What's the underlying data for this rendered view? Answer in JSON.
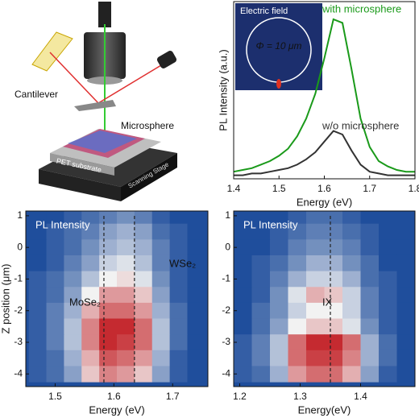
{
  "illustration": {
    "labels": [
      "Cantilever",
      "Microsphere",
      "PET substrate",
      "Scanning Stage"
    ]
  },
  "chart_data": [
    {
      "type": "line",
      "xlabel": "Energy (eV)",
      "ylabel": "PL Intensity (a.u.)",
      "xlim": [
        1.4,
        1.8
      ],
      "xticks": [
        1.4,
        1.5,
        1.6,
        1.7,
        1.8
      ],
      "ylim": [
        0,
        1
      ],
      "annotations": [
        "Electric field",
        "Φ = 10 μm"
      ],
      "x": [
        1.4,
        1.42,
        1.44,
        1.46,
        1.48,
        1.5,
        1.52,
        1.54,
        1.56,
        1.58,
        1.6,
        1.62,
        1.64,
        1.66,
        1.68,
        1.7,
        1.72,
        1.74,
        1.76,
        1.78,
        1.8
      ],
      "series": [
        {
          "name": "with microsphere",
          "color": "#1a9a1a",
          "values": [
            0.04,
            0.05,
            0.06,
            0.08,
            0.1,
            0.13,
            0.17,
            0.24,
            0.34,
            0.48,
            0.68,
            0.9,
            0.88,
            0.62,
            0.34,
            0.18,
            0.1,
            0.07,
            0.05,
            0.04,
            0.04
          ]
        },
        {
          "name": "w/o microsphere",
          "color": "#333333",
          "values": [
            0.02,
            0.02,
            0.03,
            0.03,
            0.04,
            0.05,
            0.06,
            0.08,
            0.11,
            0.15,
            0.21,
            0.27,
            0.25,
            0.16,
            0.08,
            0.04,
            0.03,
            0.02,
            0.02,
            0.02,
            0.02
          ]
        }
      ]
    },
    {
      "type": "heatmap",
      "title": "PL Intensity",
      "xlabel": "Energy (eV)",
      "ylabel": "Z position (μm)",
      "xlim": [
        1.45,
        1.76
      ],
      "xticks": [
        1.5,
        1.6,
        1.7
      ],
      "ylim": [
        -4.4,
        1.15
      ],
      "yticks": [
        1,
        0,
        -1,
        -2,
        -3,
        -4
      ],
      "colormap": [
        "#1f4e9c",
        "#f2f2f2",
        "#c0141a"
      ],
      "guides": [
        1.583,
        1.635
      ],
      "annotations": [
        "MoSe₂",
        "WSe₂"
      ],
      "x": [
        1.47,
        1.5,
        1.53,
        1.56,
        1.59,
        1.62,
        1.65,
        1.68,
        1.71,
        1.74
      ],
      "y": [
        1.0,
        0.5,
        0,
        -0.5,
        -1,
        -1.5,
        -2,
        -2.5,
        -3,
        -3.5,
        -4
      ],
      "z": [
        [
          0,
          0,
          0.05,
          0.1,
          0.15,
          0.2,
          0.15,
          0.05,
          0,
          0
        ],
        [
          0,
          0.05,
          0.1,
          0.15,
          0.25,
          0.3,
          0.25,
          0.1,
          0.05,
          0
        ],
        [
          0,
          0.05,
          0.1,
          0.2,
          0.3,
          0.35,
          0.3,
          0.15,
          0.05,
          0
        ],
        [
          0,
          0.05,
          0.15,
          0.25,
          0.4,
          0.45,
          0.35,
          0.15,
          0.05,
          0
        ],
        [
          0.05,
          0.1,
          0.2,
          0.35,
          0.5,
          0.55,
          0.45,
          0.2,
          0.05,
          0
        ],
        [
          0.05,
          0.1,
          0.25,
          0.5,
          0.7,
          0.7,
          0.6,
          0.25,
          0.05,
          0
        ],
        [
          0.05,
          0.15,
          0.3,
          0.65,
          0.8,
          0.8,
          0.7,
          0.3,
          0.1,
          0
        ],
        [
          0.05,
          0.15,
          0.35,
          0.75,
          0.95,
          0.95,
          0.8,
          0.35,
          0.1,
          0
        ],
        [
          0.05,
          0.15,
          0.35,
          0.75,
          0.95,
          0.9,
          0.8,
          0.35,
          0.1,
          0
        ],
        [
          0.05,
          0.1,
          0.3,
          0.65,
          0.85,
          0.8,
          0.7,
          0.3,
          0.05,
          0
        ],
        [
          0.05,
          0.1,
          0.25,
          0.6,
          0.75,
          0.7,
          0.6,
          0.25,
          0.05,
          0
        ]
      ]
    },
    {
      "type": "heatmap",
      "title": "PL Intensity",
      "xlabel": "Energy(eV)",
      "xlim": [
        1.19,
        1.49
      ],
      "xticks": [
        1.2,
        1.3,
        1.4
      ],
      "ylim": [
        -4.4,
        1.15
      ],
      "yticks": [
        1,
        0,
        -1,
        -2,
        -3,
        -4
      ],
      "colormap": [
        "#1f4e9c",
        "#f2f2f2",
        "#c0141a"
      ],
      "guides": [
        1.35
      ],
      "annotations": [
        "IX"
      ],
      "x": [
        1.205,
        1.235,
        1.265,
        1.295,
        1.325,
        1.355,
        1.385,
        1.415,
        1.445,
        1.475
      ],
      "y": [
        1.0,
        0.5,
        0,
        -0.5,
        -1,
        -1.5,
        -2,
        -2.5,
        -3,
        -3.5,
        -4
      ],
      "z": [
        [
          0,
          0,
          0,
          0.05,
          0.1,
          0.1,
          0.05,
          0,
          0,
          0
        ],
        [
          0,
          0,
          0.05,
          0.1,
          0.15,
          0.15,
          0.1,
          0.05,
          0,
          0
        ],
        [
          0,
          0,
          0.05,
          0.15,
          0.2,
          0.2,
          0.15,
          0.05,
          0,
          0
        ],
        [
          0,
          0.05,
          0.1,
          0.2,
          0.3,
          0.3,
          0.2,
          0.1,
          0,
          0
        ],
        [
          0,
          0.05,
          0.15,
          0.3,
          0.4,
          0.4,
          0.3,
          0.1,
          0.05,
          0
        ],
        [
          0,
          0.05,
          0.2,
          0.45,
          0.65,
          0.6,
          0.4,
          0.15,
          0.05,
          0
        ],
        [
          0,
          0.1,
          0.2,
          0.4,
          0.5,
          0.5,
          0.4,
          0.15,
          0.05,
          0
        ],
        [
          0,
          0.1,
          0.25,
          0.5,
          0.6,
          0.6,
          0.45,
          0.2,
          0.05,
          0
        ],
        [
          0.05,
          0.15,
          0.35,
          0.8,
          0.95,
          0.95,
          0.8,
          0.3,
          0.1,
          0
        ],
        [
          0.05,
          0.15,
          0.35,
          0.8,
          0.9,
          0.9,
          0.75,
          0.3,
          0.1,
          0
        ],
        [
          0.05,
          0.1,
          0.3,
          0.7,
          0.8,
          0.8,
          0.65,
          0.25,
          0.05,
          0
        ]
      ]
    }
  ]
}
